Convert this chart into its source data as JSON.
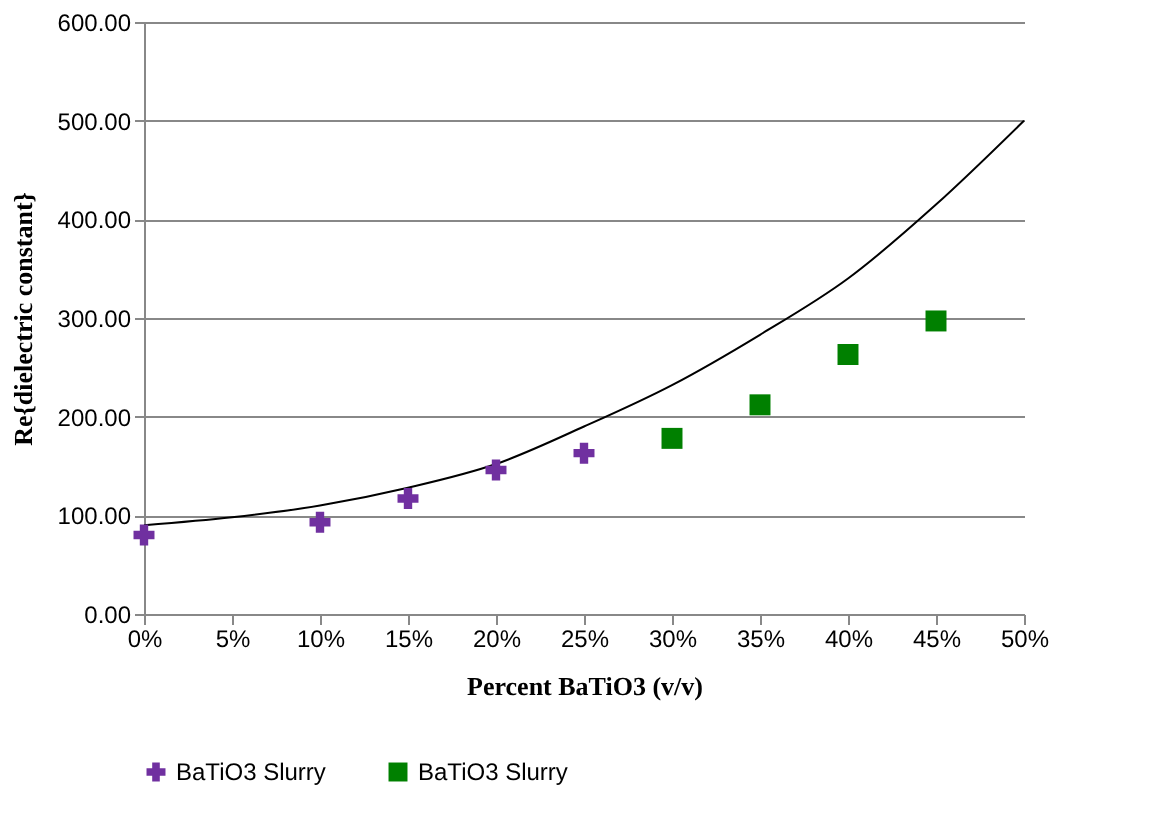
{
  "chart_data": {
    "type": "scatter",
    "xlabel": "Percent BaTiO3 (v/v)",
    "ylabel": "Re{dielectric constant}",
    "xlim": [
      0,
      50
    ],
    "xticks": [
      {
        "value": 0,
        "label": "0%"
      },
      {
        "value": 5,
        "label": "5%"
      },
      {
        "value": 10,
        "label": "10%"
      },
      {
        "value": 15,
        "label": "15%"
      },
      {
        "value": 20,
        "label": "20%"
      },
      {
        "value": 25,
        "label": "25%"
      },
      {
        "value": 30,
        "label": "30%"
      },
      {
        "value": 35,
        "label": "35%"
      },
      {
        "value": 40,
        "label": "40%"
      },
      {
        "value": 45,
        "label": "45%"
      },
      {
        "value": 50,
        "label": "50%"
      }
    ],
    "ylim": [
      0,
      600
    ],
    "yticks": [
      {
        "value": 0,
        "label": "0.00"
      },
      {
        "value": 100,
        "label": "100.00"
      },
      {
        "value": 200,
        "label": "200.00"
      },
      {
        "value": 300,
        "label": "300.00"
      },
      {
        "value": 400,
        "label": "400.00"
      },
      {
        "value": 500,
        "label": "500.00"
      },
      {
        "value": 600,
        "label": "600.00"
      }
    ],
    "grid": "y",
    "legend": "bottom",
    "series": [
      {
        "name": "BaTiO3 Slurry",
        "color": "#7030a0",
        "marker": "cross",
        "x": [
          0,
          10,
          15,
          20,
          25
        ],
        "values": [
          80,
          93,
          117,
          146,
          163
        ]
      },
      {
        "name": "BaTiO3 Slurry",
        "color": "#008000",
        "marker": "square",
        "x": [
          30,
          35,
          40,
          45
        ],
        "values": [
          178,
          212,
          263,
          297
        ]
      },
      {
        "type": "line",
        "color": "#000000",
        "line_style": "solid",
        "x": [
          0,
          5,
          10,
          15,
          20,
          25,
          30,
          35,
          40,
          45,
          50
        ],
        "values": [
          90,
          98,
          110,
          128,
          152,
          190,
          232,
          283,
          340,
          415,
          500
        ]
      }
    ]
  }
}
